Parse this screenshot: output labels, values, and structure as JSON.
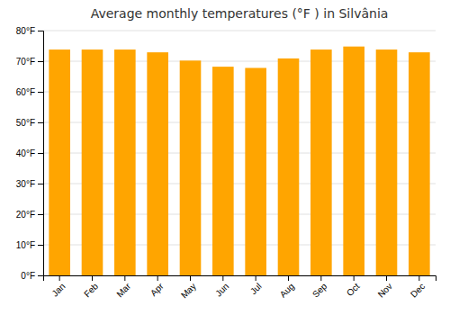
{
  "chart_data": {
    "type": "bar",
    "title": "Average monthly temperatures (°F ) in Silvânia",
    "categories": [
      "Jan",
      "Feb",
      "Mar",
      "Apr",
      "May",
      "Jun",
      "Jul",
      "Aug",
      "Sep",
      "Oct",
      "Nov",
      "Dec"
    ],
    "values": [
      73.8,
      73.8,
      73.8,
      72.9,
      70.2,
      68.2,
      67.8,
      70.9,
      73.8,
      74.8,
      73.8,
      72.9
    ],
    "color": "#FFA500",
    "ylim": [
      0,
      80
    ],
    "yticks": [
      {
        "value": 0,
        "label": "0°F"
      },
      {
        "value": 10,
        "label": "10°F"
      },
      {
        "value": 20,
        "label": "20°F"
      },
      {
        "value": 30,
        "label": "30°F"
      },
      {
        "value": 40,
        "label": "40°F"
      },
      {
        "value": 50,
        "label": "50°F"
      },
      {
        "value": 60,
        "label": "60°F"
      },
      {
        "value": 70,
        "label": "70°F"
      },
      {
        "value": 80,
        "label": "80°F"
      }
    ],
    "grid": true
  }
}
